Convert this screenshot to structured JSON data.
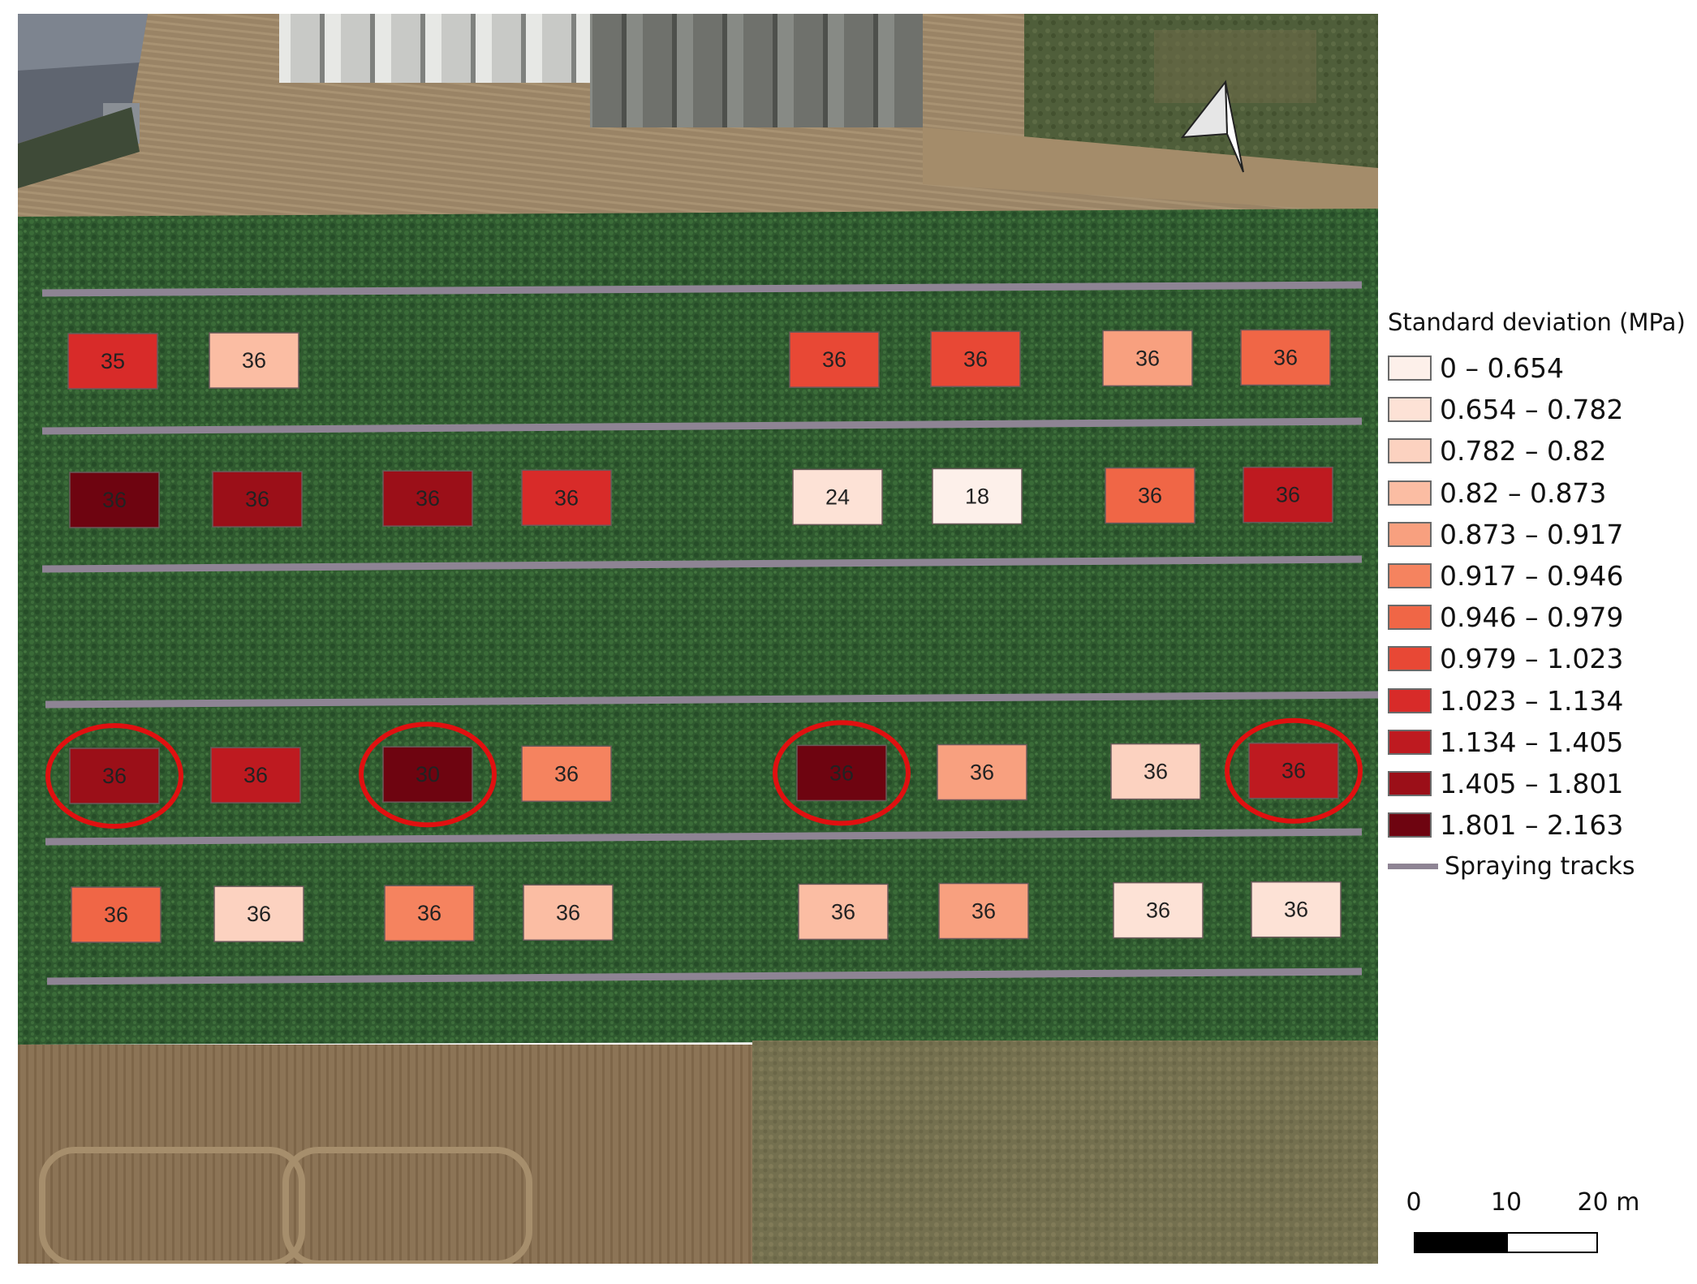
{
  "legend": {
    "title": "Standard deviation (MPa)",
    "classes": [
      {
        "label": "0 – 0.654",
        "color": "#fdf0ea"
      },
      {
        "label": "0.654 – 0.782",
        "color": "#fde2d6"
      },
      {
        "label": "0.782 – 0.82",
        "color": "#fcd2c0"
      },
      {
        "label": "0.82 – 0.873",
        "color": "#fbbda3"
      },
      {
        "label": "0.873 – 0.917",
        "color": "#f8a07f"
      },
      {
        "label": "0.917 – 0.946",
        "color": "#f5835f"
      },
      {
        "label": "0.946 – 0.979",
        "color": "#f06646"
      },
      {
        "label": "0.979 – 1.023",
        "color": "#e84835"
      },
      {
        "label": "1.023 – 1.134",
        "color": "#d82b29"
      },
      {
        "label": "1.134 – 1.405",
        "color": "#be1a20"
      },
      {
        "label": "1.405 – 1.801",
        "color": "#9b0f18"
      },
      {
        "label": "1.801 – 2.163",
        "color": "#6e0410"
      }
    ],
    "track_label": "Spraying tracks",
    "track_color": "#8e8494"
  },
  "scale_bar": {
    "ticks": [
      "0",
      "10",
      "20 m"
    ]
  },
  "north_arrow": "north-arrow-icon",
  "plots": [
    {
      "row": 1,
      "label": "35",
      "cls": 8
    },
    {
      "row": 1,
      "label": "36",
      "cls": 3
    },
    {
      "row": 1,
      "label": "36",
      "cls": 7
    },
    {
      "row": 1,
      "label": "36",
      "cls": 7
    },
    {
      "row": 1,
      "label": "36",
      "cls": 4
    },
    {
      "row": 1,
      "label": "36",
      "cls": 6
    },
    {
      "row": 2,
      "label": "36",
      "cls": 11
    },
    {
      "row": 2,
      "label": "36",
      "cls": 10
    },
    {
      "row": 2,
      "label": "36",
      "cls": 10
    },
    {
      "row": 2,
      "label": "36",
      "cls": 8
    },
    {
      "row": 2,
      "label": "24",
      "cls": 1
    },
    {
      "row": 2,
      "label": "18",
      "cls": 0
    },
    {
      "row": 2,
      "label": "36",
      "cls": 6
    },
    {
      "row": 2,
      "label": "36",
      "cls": 9
    },
    {
      "row": 3,
      "label": "36",
      "cls": 10,
      "circled": true
    },
    {
      "row": 3,
      "label": "36",
      "cls": 9
    },
    {
      "row": 3,
      "label": "30",
      "cls": 11,
      "circled": true
    },
    {
      "row": 3,
      "label": "36",
      "cls": 5
    },
    {
      "row": 3,
      "label": "36",
      "cls": 11,
      "circled": true
    },
    {
      "row": 3,
      "label": "36",
      "cls": 4
    },
    {
      "row": 3,
      "label": "36",
      "cls": 2
    },
    {
      "row": 3,
      "label": "36",
      "cls": 9,
      "circled": true
    },
    {
      "row": 4,
      "label": "36",
      "cls": 6
    },
    {
      "row": 4,
      "label": "36",
      "cls": 2
    },
    {
      "row": 4,
      "label": "36",
      "cls": 5
    },
    {
      "row": 4,
      "label": "36",
      "cls": 3
    },
    {
      "row": 4,
      "label": "36",
      "cls": 3
    },
    {
      "row": 4,
      "label": "36",
      "cls": 4
    },
    {
      "row": 4,
      "label": "36",
      "cls": 1
    },
    {
      "row": 4,
      "label": "36",
      "cls": 1
    }
  ]
}
